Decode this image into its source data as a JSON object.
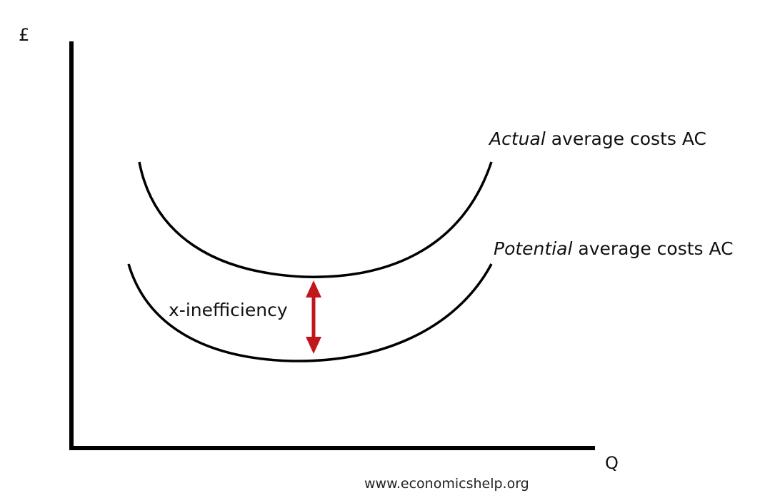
{
  "diagram": {
    "y_axis_label": "£",
    "x_axis_label": "Q",
    "actual_curve": {
      "label_emphasis": "Actual",
      "label_rest": " average costs AC"
    },
    "potential_curve": {
      "label_emphasis": "Potential",
      "label_rest": " average costs AC"
    },
    "gap_label": "x-inefficiency",
    "source": "www.economicshelp.org",
    "colors": {
      "axes": "#000000",
      "curves": "#000000",
      "arrow": "#c0171c"
    }
  }
}
